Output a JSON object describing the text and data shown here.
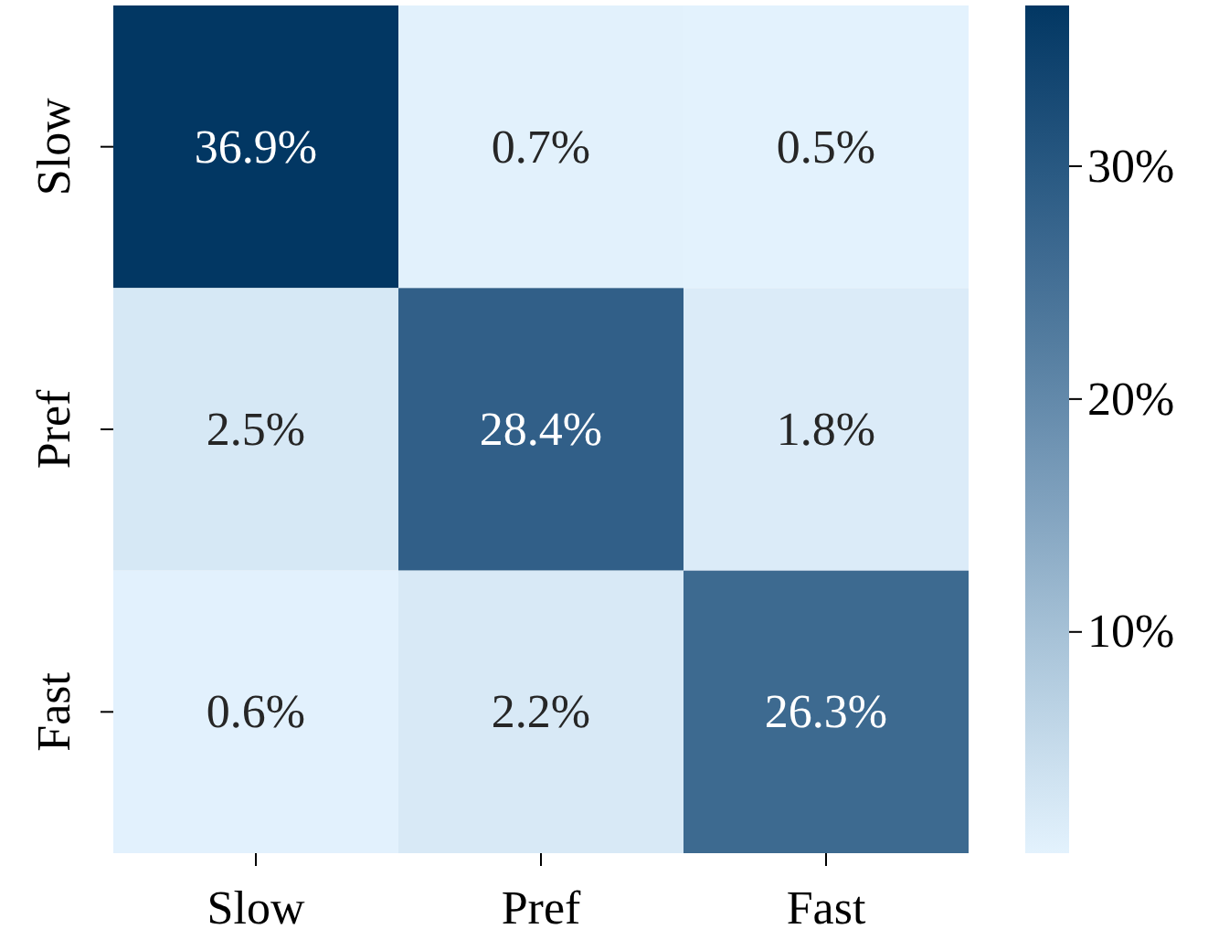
{
  "chart_data": {
    "type": "heatmap",
    "categories": [
      "Slow",
      "Pref",
      "Fast"
    ],
    "y_categories": [
      "Slow",
      "Pref",
      "Fast"
    ],
    "cells": [
      [
        36.9,
        0.7,
        0.5
      ],
      [
        2.5,
        28.4,
        1.8
      ],
      [
        0.6,
        2.2,
        26.3
      ]
    ],
    "cell_labels": [
      [
        "36.9%",
        "0.7%",
        "0.5%"
      ],
      [
        "2.5%",
        "28.4%",
        "1.8%"
      ],
      [
        "0.6%",
        "2.2%",
        "26.3%"
      ]
    ],
    "clim": [
      0.5,
      36.9
    ],
    "cticks": [
      {
        "value": 10,
        "label": "10%"
      },
      {
        "value": 20,
        "label": "20%"
      },
      {
        "value": 30,
        "label": "30%"
      }
    ]
  }
}
